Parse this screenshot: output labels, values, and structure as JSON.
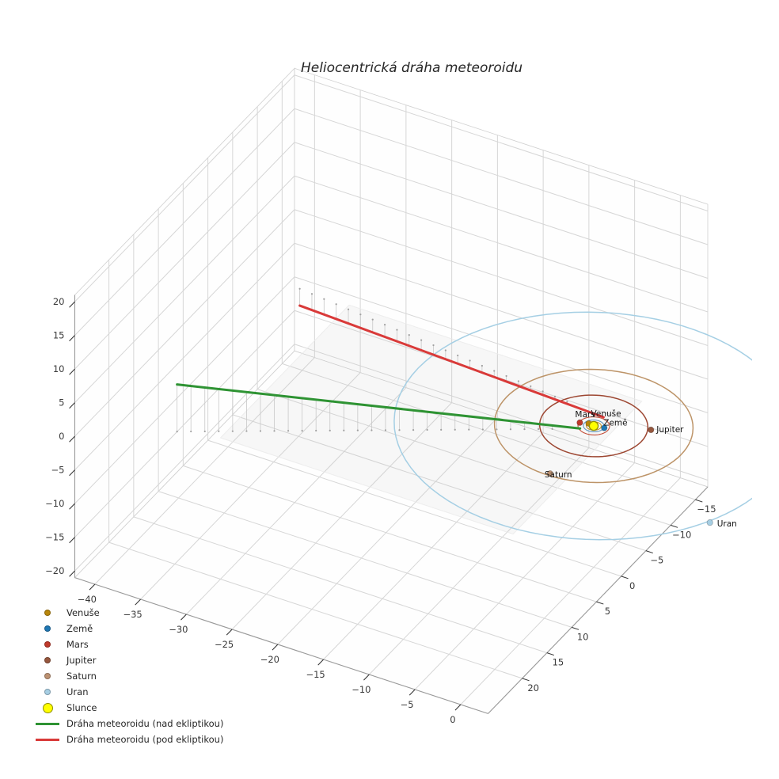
{
  "title": "Heliocentrická dráha meteoroidu",
  "chart_data": {
    "type": "scatter",
    "projection": "3d",
    "title": "Heliocentrická dráha meteoroidu",
    "axes": {
      "x_ticks": [
        -40,
        -35,
        -30,
        -25,
        -20,
        -15,
        -10,
        -5,
        0
      ],
      "y_ticks": [
        -15,
        -10,
        -5,
        0,
        5,
        10,
        15,
        20
      ],
      "z_ticks": [
        -20,
        -15,
        -10,
        -5,
        0,
        5,
        10,
        15,
        20
      ],
      "grid": true,
      "units": "AU"
    },
    "sun": {
      "name": "Slunce",
      "position_au": [
        0,
        0,
        0
      ],
      "color": "#ffff00",
      "edge_color": "#8f8f00"
    },
    "planets": [
      {
        "name": "Venuše",
        "marker_color": "#b8860b",
        "position_au": [
          -0.62,
          -0.11,
          0
        ],
        "orbit_radius_au": 0.72,
        "orbit_color": "#c8952e"
      },
      {
        "name": "Země",
        "marker_color": "#1f77b4",
        "position_au": [
          1.03,
          -0.22,
          0
        ],
        "orbit_radius_au": 1.0,
        "orbit_color": "#5f93bd"
      },
      {
        "name": "Mars",
        "marker_color": "#c0392b",
        "position_au": [
          -1.42,
          0.19,
          0
        ],
        "orbit_radius_au": 1.52,
        "orbit_color": "#c4503c"
      },
      {
        "name": "Jupiter",
        "marker_color": "#96573e",
        "position_au": [
          5.06,
          -2.21,
          0
        ],
        "orbit_radius_au": 5.2,
        "orbit_color": "#9d4732"
      },
      {
        "name": "Saturn",
        "marker_color": "#bd9272",
        "position_au": [
          0.21,
          9.21,
          0
        ],
        "orbit_radius_au": 9.55,
        "orbit_color": "#bd9468"
      },
      {
        "name": "Uran",
        "marker_color": "#a6cee3",
        "position_au": [
          17.4,
          8.68,
          0
        ],
        "orbit_radius_au": 19.2,
        "orbit_color": "#a5cfe4"
      }
    ],
    "meteoroid_trajectory": [
      {
        "label": "Dráha meteoroidu (nad ekliptikou)",
        "color": "#2e9333",
        "from_au": [
          -34.1,
          21.2,
          7.0
        ],
        "to_au": [
          -0.9,
          1.1,
          0.05
        ],
        "stem_count": 30
      },
      {
        "label": "Dráha meteoroidu (pod ekliptikou)",
        "color": "#d93a39",
        "from_au": [
          0.1,
          -1.8,
          -0.03
        ],
        "to_au": [
          -35.4,
          -6.0,
          -2.5
        ],
        "stem_count": 26
      }
    ]
  },
  "legend": {
    "items": [
      {
        "label": "Venuše",
        "swatch": "dot",
        "color": "#b8860b"
      },
      {
        "label": "Země",
        "swatch": "dot",
        "color": "#1f77b4"
      },
      {
        "label": "Mars",
        "swatch": "dot",
        "color": "#c0392b"
      },
      {
        "label": "Jupiter",
        "swatch": "dot",
        "color": "#96573e"
      },
      {
        "label": "Saturn",
        "swatch": "dot",
        "color": "#bd9272"
      },
      {
        "label": "Uran",
        "swatch": "dot",
        "color": "#a6cee3"
      },
      {
        "label": "Slunce",
        "swatch": "dot-large",
        "color": "#ffff00",
        "edge": "#8f8f00"
      },
      {
        "label": "Dráha meteoroidu (nad ekliptikou)",
        "swatch": "line",
        "color": "#2e9333"
      },
      {
        "label": "Dráha meteoroidu (pod ekliptikou)",
        "swatch": "line",
        "color": "#d93a39"
      }
    ]
  }
}
